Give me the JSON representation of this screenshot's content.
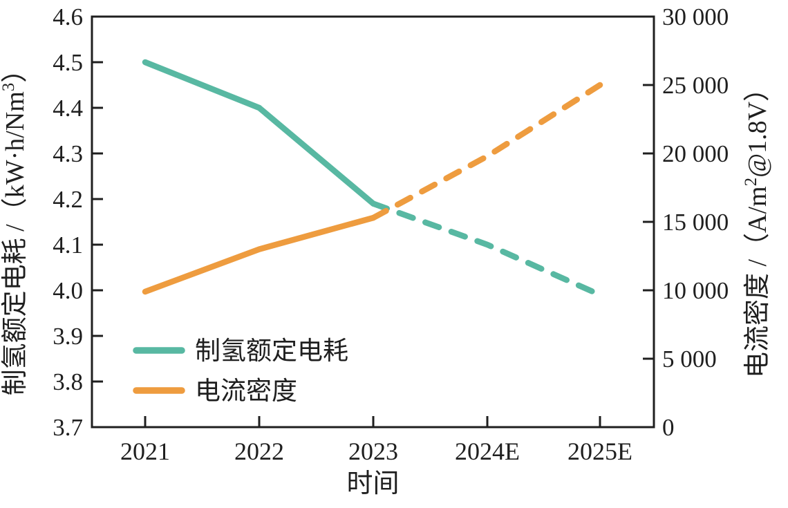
{
  "chart_data": {
    "type": "line",
    "title": "",
    "categories": [
      "2021",
      "2022",
      "2023",
      "2024E",
      "2025E"
    ],
    "xlabel": "时间",
    "series": [
      {
        "name": "制氢额定电耗",
        "axis": "left",
        "color": "#58b8a2",
        "values": [
          4.5,
          4.4,
          4.19,
          4.1,
          3.99
        ],
        "solid_until_index": 2,
        "dashed_after": true
      },
      {
        "name": "电流密度",
        "axis": "right",
        "color": "#ee9c3f",
        "values": [
          9900,
          13000,
          15300,
          19800,
          25000
        ],
        "solid_until_index": 2,
        "dashed_after": true
      }
    ],
    "left_axis": {
      "label": "制氢额定电耗 /（kW·h/Nm³）",
      "min": 3.7,
      "max": 4.6,
      "tick_labels": [
        "3.7",
        "3.8",
        "3.9",
        "4.0",
        "4.1",
        "4.2",
        "4.3",
        "4.4",
        "4.5",
        "4.6"
      ]
    },
    "right_axis": {
      "label": "电流密度 /（A/m²@1.8V）",
      "min": 0,
      "max": 30000,
      "tick_labels": [
        "0",
        "5 000",
        "10 000",
        "15 000",
        "20 000",
        "25 000",
        "30 000"
      ]
    },
    "legend": {
      "position": "inside-bottom-left",
      "items": [
        "制氢额定电耗",
        "电流密度"
      ]
    },
    "grid": false
  },
  "label_parts": {
    "left": [
      {
        "t": "制氢额定电耗 /（kW·h/Nm"
      },
      {
        "t": "3",
        "sup": true
      },
      {
        "t": "）"
      }
    ],
    "right": [
      {
        "t": "电流密度 /（A/m"
      },
      {
        "t": "2",
        "sup": true
      },
      {
        "t": "@1.8V）"
      }
    ]
  },
  "colors": {
    "axis": "#1f1f1f",
    "background": "#ffffff",
    "teal": "#58b8a2",
    "orange": "#ee9c3f"
  }
}
